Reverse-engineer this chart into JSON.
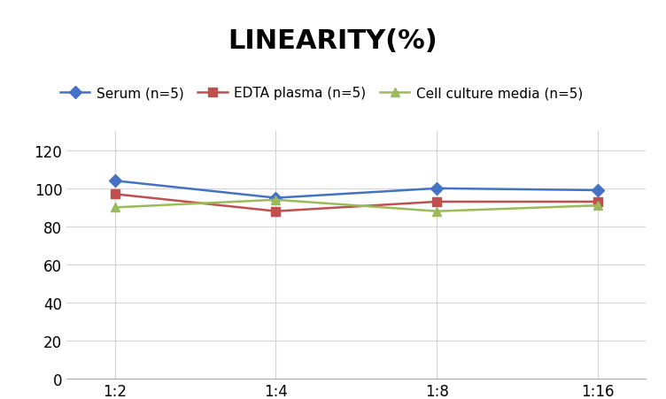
{
  "title": "LINEARITY(%)",
  "x_labels": [
    "1:2",
    "1:4",
    "1:8",
    "1:16"
  ],
  "series": [
    {
      "label": "Serum (n=5)",
      "values": [
        104,
        95,
        100,
        99
      ],
      "color": "#4472C4",
      "marker": "D",
      "markersize": 7,
      "linewidth": 1.8
    },
    {
      "label": "EDTA plasma (n=5)",
      "values": [
        97,
        88,
        93,
        93
      ],
      "color": "#C0504D",
      "marker": "s",
      "markersize": 7,
      "linewidth": 1.8
    },
    {
      "label": "Cell culture media (n=5)",
      "values": [
        90,
        94,
        88,
        91
      ],
      "color": "#9BBB59",
      "marker": "^",
      "markersize": 7,
      "linewidth": 1.8
    }
  ],
  "ylim": [
    0,
    130
  ],
  "yticks": [
    0,
    20,
    40,
    60,
    80,
    100,
    120
  ],
  "title_fontsize": 22,
  "legend_fontsize": 11,
  "tick_fontsize": 12,
  "background_color": "#ffffff",
  "grid_color": "#d4d4d4",
  "title_fontweight": "bold"
}
